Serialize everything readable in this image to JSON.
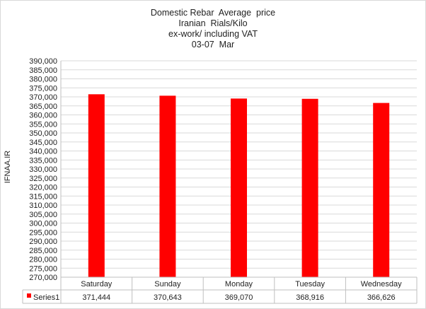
{
  "chart_data": {
    "type": "bar",
    "title_lines": [
      "Domestic Rebar  Average  price",
      "Iranian  Rials/Kilo",
      "ex-work/ including VAT",
      "03-07  Mar"
    ],
    "ylabel": "IFNAA.IR",
    "categories": [
      "Saturday",
      "Sunday",
      "Monday",
      "Tuesday",
      "Wednesday"
    ],
    "series": [
      {
        "name": "Series1",
        "values": [
          371444,
          370643,
          369070,
          368916,
          366626
        ]
      }
    ],
    "table_values": [
      "371,444",
      "370,643",
      "369,070",
      "368,916",
      "366,626"
    ],
    "ylim": [
      270000,
      390000
    ],
    "ytick_step": 5000,
    "grid": true,
    "legend": "data-table",
    "bar_color": "#ff0000"
  }
}
